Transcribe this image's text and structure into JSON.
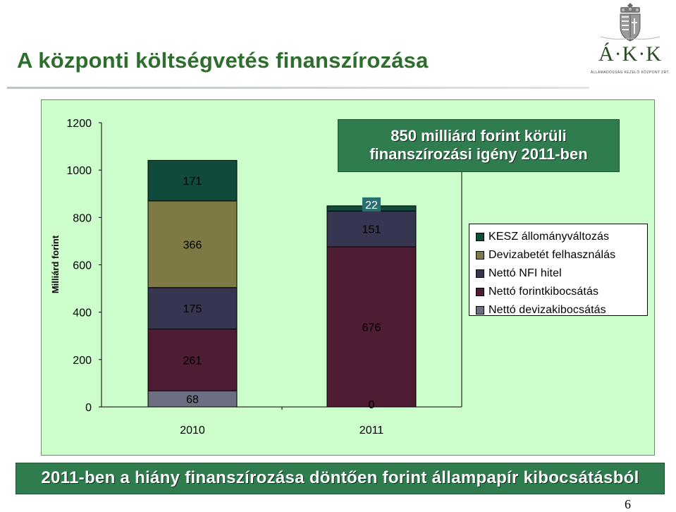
{
  "header": {
    "title": "A központi költségvetés finanszírozása",
    "logo_letters": "Á·K·K",
    "logo_subtitle": "ÁLLAMADÓSSÁG KEZELŐ KÖZPONT ZRT."
  },
  "callout": {
    "line1": "850 milliárd forint körüli",
    "line2": "finanszírozási igény 2011-ben"
  },
  "banner": {
    "text": "2011-ben a hiány finanszírozása döntően forint állampapír kibocsátásból"
  },
  "page_number": "6",
  "colors": {
    "title": "#2d6e2d",
    "panel_bg": "#ccffcc",
    "banner_bg": "#2f7d4e",
    "kesz": "#0f4a3a",
    "devizabetet": "#7d7a46",
    "nfi": "#363650",
    "forint": "#4e1c34",
    "deviza": "#6e6e82"
  },
  "chart_data": {
    "type": "bar",
    "stacked": true,
    "title": "",
    "xlabel": "",
    "ylabel": "Milliárd forint",
    "ylim": [
      0,
      1200
    ],
    "yticks": [
      0,
      200,
      400,
      600,
      800,
      1000,
      1200
    ],
    "ytick_labels": [
      "0",
      "200",
      "400",
      "600",
      "800",
      "1000",
      "1200"
    ],
    "categories": [
      "2010",
      "2011"
    ],
    "legend_position": "right",
    "grid": false,
    "series": [
      {
        "name": "Nettó devizakibocsátás",
        "values": [
          68,
          0
        ],
        "color": "#6e6e82",
        "labels": [
          "68",
          "0"
        ]
      },
      {
        "name": "Nettó forintkibocsátás",
        "values": [
          261,
          676
        ],
        "color": "#4e1c34",
        "labels": [
          "261",
          "676"
        ]
      },
      {
        "name": "Nettó NFI hitel",
        "values": [
          175,
          151
        ],
        "color": "#363650",
        "labels": [
          "175",
          "151"
        ]
      },
      {
        "name": "Devizabetét felhasználás",
        "values": [
          366,
          0
        ],
        "color": "#7d7a46",
        "labels": [
          "366",
          ""
        ]
      },
      {
        "name": "KESZ állományváltozás",
        "values": [
          171,
          22
        ],
        "color": "#0f4a3a",
        "labels": [
          "171",
          "22"
        ]
      }
    ],
    "legend_order": [
      "KESZ állományváltozás",
      "Devizabetét felhasználás",
      "Nettó NFI hitel",
      "Nettó forintkibocsátás",
      "Nettó devizakibocsátás"
    ]
  }
}
